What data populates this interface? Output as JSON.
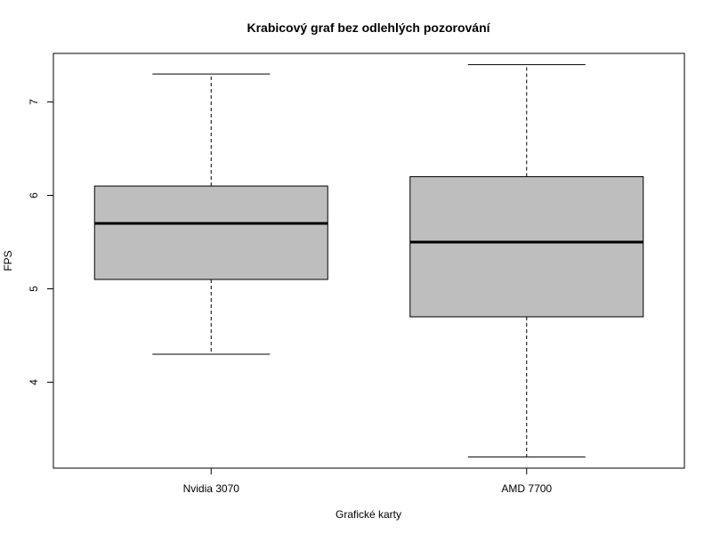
{
  "chart_data": {
    "type": "boxplot",
    "title": "Krabicový graf bez odlehlých pozorování",
    "xlabel": "Grafické karty",
    "ylabel": "FPS",
    "categories": [
      "Nvidia 3070",
      "AMD 7700"
    ],
    "boxes": [
      {
        "category": "Nvidia 3070",
        "min": 4.3,
        "q1": 5.1,
        "median": 5.7,
        "q3": 6.1,
        "max": 7.3
      },
      {
        "category": "AMD 7700",
        "min": 3.2,
        "q1": 4.7,
        "median": 5.5,
        "q3": 6.2,
        "max": 7.4
      }
    ],
    "y_ticks": [
      4,
      5,
      6,
      7
    ],
    "ylim": [
      3.08,
      7.52
    ],
    "box_fill": "#bebebe",
    "grid": false,
    "legend": "none"
  }
}
